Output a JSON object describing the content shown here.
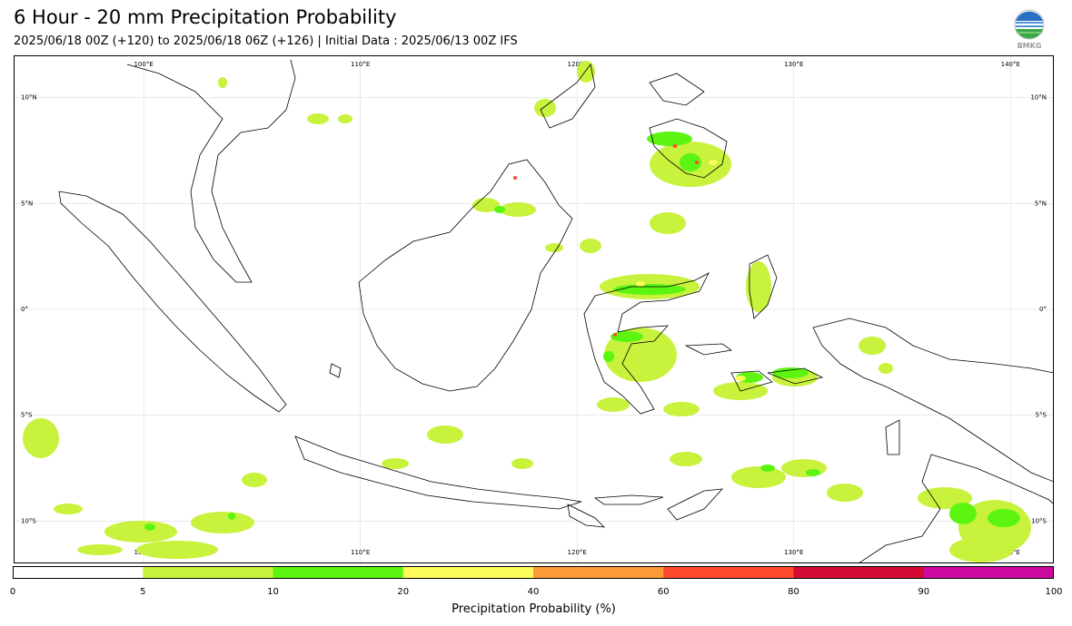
{
  "title": "6 Hour - 20 mm Precipitation Probability",
  "subtitle": "2025/06/18 00Z (+120) to 2025/06/18 06Z (+126) | Initial Data : 2025/06/13 00Z IFS",
  "logo": {
    "icon": "bmkg-logo-icon",
    "text": "BMKG"
  },
  "map": {
    "lon_labels": [
      "100°E",
      "110°E",
      "120°E",
      "130°E",
      "140°E"
    ],
    "lat_labels": [
      "10°N",
      "5°N",
      "0°",
      "5°S",
      "10°S"
    ],
    "lon_range": [
      94,
      142
    ],
    "lat_range": [
      -12,
      12
    ],
    "lon_values": [
      100,
      110,
      120,
      130,
      140
    ],
    "lat_values": [
      10,
      5,
      0,
      -5,
      -10
    ],
    "land_color": "#ffffff",
    "coast_color": "#000000"
  },
  "colorbar": {
    "label": "Precipitation Probability (%)",
    "ticks": [
      "0",
      "5",
      "10",
      "20",
      "40",
      "60",
      "80",
      "90",
      "100"
    ],
    "colors": [
      "#ffffff",
      "#c8f23c",
      "#5cf511",
      "#fcfd5a",
      "#fd9b36",
      "#fd4a2f",
      "#d20a34",
      "#cc0aa0"
    ]
  }
}
